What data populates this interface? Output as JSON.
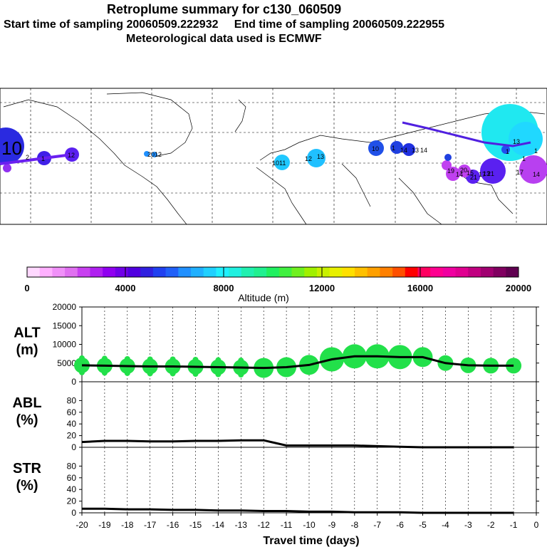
{
  "header": {
    "title": "Retroplume summary for c130_060509",
    "line2": "Start time of sampling 20060509.222932     End time of sampling 20060509.222955",
    "line3": "Meteorological data used is ECMWF"
  },
  "colorbar": {
    "tick_labels": [
      "0",
      "4000",
      "8000",
      "12000",
      "16000",
      "20000"
    ],
    "label": "Altitude (m)",
    "colors": [
      "#ffd8ff",
      "#ffb0ff",
      "#f090f8",
      "#e070f0",
      "#c840f0",
      "#b020f0",
      "#9000f0",
      "#7000e8",
      "#5000e0",
      "#3020e0",
      "#2040f0",
      "#2060f8",
      "#2090ff",
      "#20b0ff",
      "#20d0ff",
      "#20f0ff",
      "#20f0e0",
      "#20f0b0",
      "#20f090",
      "#20f060",
      "#40f040",
      "#70f020",
      "#a0f000",
      "#c8f000",
      "#e8f000",
      "#ffe000",
      "#ffc000",
      "#ffa000",
      "#ff8000",
      "#ff5000",
      "#ff0000",
      "#ff0060",
      "#ff0090",
      "#f000a0",
      "#e00090",
      "#c00080",
      "#a00070",
      "#800060",
      "#600050"
    ]
  },
  "map": {
    "labels": [
      "10",
      "2",
      "1",
      "12",
      "2012",
      "1011",
      "12",
      "13",
      "10",
      "1",
      "14",
      "13",
      "14",
      "17",
      "14",
      "15",
      "19",
      "20",
      "21",
      "21",
      "13",
      "17",
      "14",
      "1",
      "13",
      "1",
      "1"
    ]
  },
  "chart_data": [
    {
      "type": "line",
      "panel": "ALT",
      "ylabel": "ALT\n(m)",
      "x": [
        -20,
        -19,
        -18,
        -17,
        -16,
        -15,
        -14,
        -13,
        -12,
        -11,
        -10,
        -9,
        -8,
        -7,
        -6,
        -5,
        -4,
        -3,
        -2,
        -1
      ],
      "y": [
        4400,
        4300,
        4200,
        4100,
        4100,
        4000,
        3900,
        3800,
        3700,
        3900,
        4500,
        6000,
        6800,
        6800,
        6600,
        6600,
        5000,
        4400,
        4300,
        4300
      ],
      "ylim": [
        0,
        20000
      ],
      "yticks": [
        "20000",
        "15000",
        "10000",
        "5000",
        "0"
      ],
      "marker_sizes": [
        2,
        2,
        2,
        2,
        2,
        2,
        2,
        2,
        3,
        3,
        3,
        4,
        4,
        4,
        4,
        3,
        2,
        2,
        2,
        2
      ]
    },
    {
      "type": "line",
      "panel": "ABL",
      "ylabel": "ABL\n(%)",
      "x": [
        -20,
        -19,
        -18,
        -17,
        -16,
        -15,
        -14,
        -13,
        -12,
        -11,
        -10,
        -9,
        -8,
        -7,
        -6,
        -5,
        -4,
        -3,
        -2,
        -1
      ],
      "y": [
        9,
        11,
        11,
        10,
        10,
        11,
        11,
        12,
        12,
        3,
        3,
        3,
        3,
        2,
        1,
        0,
        0,
        0,
        0,
        0
      ],
      "ylim": [
        0,
        100
      ],
      "yticks": [
        "80",
        "60",
        "40",
        "20",
        "0"
      ]
    },
    {
      "type": "line",
      "panel": "STR",
      "ylabel": "STR\n(%)",
      "x": [
        -20,
        -19,
        -18,
        -17,
        -16,
        -15,
        -14,
        -13,
        -12,
        -11,
        -10,
        -9,
        -8,
        -7,
        -6,
        -5,
        -4,
        -3,
        -2,
        -1
      ],
      "y": [
        7,
        7,
        6,
        6,
        5,
        5,
        4,
        4,
        3,
        3,
        2,
        2,
        1,
        1,
        1,
        0,
        0,
        0,
        0,
        0
      ],
      "ylim": [
        0,
        100
      ],
      "yticks": [
        "80",
        "60",
        "40",
        "20",
        "0"
      ],
      "xlabel": "Travel time (days)",
      "xticks": [
        "-20",
        "-19",
        "-18",
        "-17",
        "-16",
        "-15",
        "-14",
        "-13",
        "-12",
        "-11",
        "-10",
        "-9",
        "-8",
        "-7",
        "-6",
        "-5",
        "-4",
        "-3",
        "-2",
        "-1",
        "0"
      ]
    }
  ]
}
